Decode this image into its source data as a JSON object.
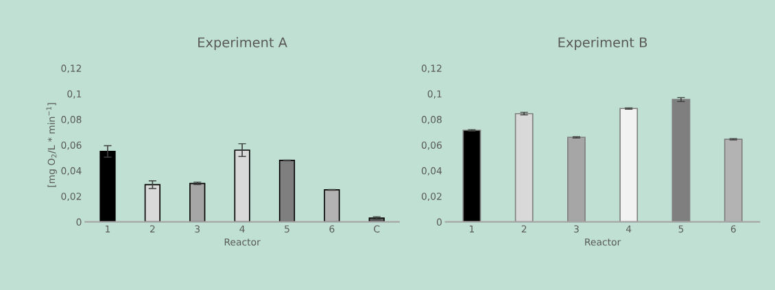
{
  "chart_data": [
    {
      "type": "bar",
      "title": "Experiment A",
      "xlabel": "Reactor",
      "ylabel": "[mg O$_{2}$/L * min$^{−1}$]",
      "categories": [
        "1",
        "2",
        "3",
        "4",
        "5",
        "6",
        "C"
      ],
      "values": [
        0.055,
        0.029,
        0.03,
        0.056,
        0.048,
        0.025,
        0.003
      ],
      "errors": [
        0.0045,
        0.003,
        0.001,
        0.005,
        0.0003,
        0.0003,
        0.001
      ],
      "colors": [
        "#000000",
        "#d9d9d9",
        "#a6a6a6",
        "#d9d9d9",
        "#7f7f7f",
        "#b3b3b3",
        "#595959"
      ],
      "ylim": [
        0,
        0.12
      ],
      "yticks": [
        {
          "value": 0,
          "label": "0"
        },
        {
          "value": 0.02,
          "label": "0,02"
        },
        {
          "value": 0.04,
          "label": "0,04"
        },
        {
          "value": 0.06,
          "label": "0,06"
        },
        {
          "value": 0.08,
          "label": "0,08"
        },
        {
          "value": 0.1,
          "label": "0,1"
        },
        {
          "value": 0.12,
          "label": "0,12"
        }
      ],
      "grid": false,
      "legend": false
    },
    {
      "type": "bar",
      "title": "Experiment B",
      "xlabel": "Reactor",
      "categories": [
        "1",
        "2",
        "3",
        "4",
        "5",
        "6"
      ],
      "values": [
        0.0715,
        0.0845,
        0.066,
        0.0885,
        0.0955,
        0.0645
      ],
      "errors": [
        0.0005,
        0.001,
        0.0005,
        0.0005,
        0.0015,
        0.0005
      ],
      "colors": [
        "#000000",
        "#d9d9d9",
        "#a6a6a6",
        "#f2f2f2",
        "#7f7f7f",
        "#b3b3b3"
      ],
      "ylim": [
        0,
        0.12
      ],
      "yticks": [
        {
          "value": 0,
          "label": "0"
        },
        {
          "value": 0.02,
          "label": "0,02"
        },
        {
          "value": 0.04,
          "label": "0,04"
        },
        {
          "value": 0.06,
          "label": "0,06"
        },
        {
          "value": 0.08,
          "label": "0,08"
        },
        {
          "value": 0.1,
          "label": "0,1"
        },
        {
          "value": 0.12,
          "label": "0,12"
        }
      ],
      "grid": false,
      "legend": false
    }
  ]
}
